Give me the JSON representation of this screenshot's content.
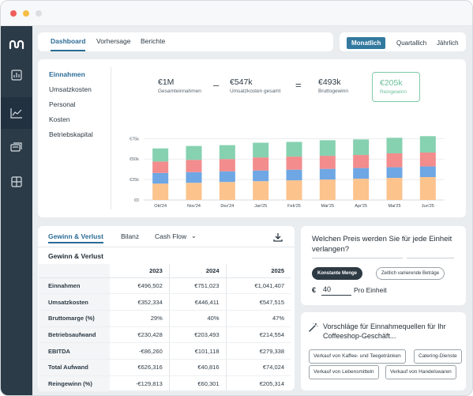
{
  "window": {
    "dots": [
      {
        "name": "close-dot",
        "color": "#ee5f5b"
      },
      {
        "name": "minimize-dot",
        "color": "#f6bd45"
      },
      {
        "name": "maximize-dot",
        "color": "#dcdfe2"
      }
    ]
  },
  "sidebar": {
    "items": [
      {
        "name": "logo-icon"
      },
      {
        "name": "sidebar-item-reports-icon"
      },
      {
        "name": "sidebar-item-analytics-icon",
        "active": true
      },
      {
        "name": "sidebar-item-cards-icon"
      },
      {
        "name": "sidebar-item-grid-icon"
      }
    ]
  },
  "nav": {
    "tabs": [
      {
        "label": "Dashboard",
        "active": true
      },
      {
        "label": "Vorhersage"
      },
      {
        "label": "Berichte"
      }
    ],
    "periods": [
      {
        "label": "Monatlich",
        "active": true
      },
      {
        "label": "Quartallich"
      },
      {
        "label": "Jährlich"
      }
    ]
  },
  "metrics": {
    "items": [
      "Einnahmen",
      "Umsatzkosten",
      "Personal",
      "Kosten",
      "Betriebskapital"
    ],
    "active_index": 0
  },
  "kpis": {
    "revenue": {
      "value": "€1M",
      "label": "Gesamteinnahmen"
    },
    "minus": "–",
    "cogs": {
      "value": "€547k",
      "label": "Umsatzkosten gesamt"
    },
    "equals": "=",
    "gross": {
      "value": "€493k",
      "label": "Bruttogewinn"
    },
    "net": {
      "value": "€205k",
      "label": "Reingewinn"
    }
  },
  "chart_data": {
    "type": "bar",
    "stacked": true,
    "categories": [
      "Okt'24",
      "Nov'24",
      "Dez'24",
      "Jan'25",
      "Feb'25",
      "Mär'25",
      "Apr'25",
      "Mai'25",
      "Jun'25"
    ],
    "y_ticks": [
      "€0",
      "€25k",
      "€50k",
      "€75k"
    ],
    "ylim": [
      0,
      85
    ],
    "series": [
      {
        "color": "#fcc38d",
        "values": [
          20,
          21,
          22,
          23,
          24,
          25,
          26,
          27,
          28
        ]
      },
      {
        "color": "#6ea7e4",
        "values": [
          13,
          13,
          13,
          13,
          13,
          13,
          13,
          13,
          13
        ]
      },
      {
        "color": "#f28c8d",
        "values": [
          14,
          15,
          15,
          16,
          16,
          16,
          16,
          17,
          17
        ]
      },
      {
        "color": "#86d1b0",
        "values": [
          16,
          17,
          17,
          18,
          18,
          19,
          19,
          19,
          20
        ]
      }
    ],
    "grid": true,
    "colors": {
      "grid": "#e3e6e9",
      "axis": "#c9ced2"
    }
  },
  "pl": {
    "tabs": [
      "Gewinn & Verlust",
      "Bilanz",
      "Cash Flow"
    ],
    "title": "Gewinn & Verlust",
    "columns": [
      "2023",
      "2024",
      "2025"
    ],
    "rows": [
      {
        "label": "Einnahmen",
        "values": [
          "€496,502",
          "€751,023",
          "€1,041,407"
        ]
      },
      {
        "label": "Umsatzkosten",
        "values": [
          "€352,334",
          "€446,411",
          "€547,515"
        ]
      },
      {
        "label": "Bruttomarge (%)",
        "values": [
          "29%",
          "40%",
          "47%"
        ]
      },
      {
        "label": "Betriebsaufwand",
        "values": [
          "€230,428",
          "€203,493",
          "€214,554"
        ]
      },
      {
        "label": "EBITDA",
        "values": [
          "-€86,260",
          "€101,118",
          "€279,338"
        ]
      },
      {
        "label": "Total Aufwand",
        "values": [
          "€626,316",
          "€40,816",
          "€74,024"
        ]
      },
      {
        "label": "Reingewinn (%)",
        "values": [
          "-€129,813",
          "€60,301",
          "€205,314"
        ]
      }
    ]
  },
  "pricing": {
    "question": "Welchen Preis werden Sie für jede Einheit verlangen?",
    "chip_constant": "Konstante Menge",
    "chip_variable": "Zeitlich variierende Beträge",
    "currency": "€",
    "price": "40",
    "unit": "Pro Einheit"
  },
  "suggestions": {
    "title": "Vorschläge für Einnahmequellen für Ihr Coffeeshop-Geschäft...",
    "tags": [
      "Verkauf von Kaffee- und Teegetränken",
      "Catering-Dienste",
      "Verkauf von Lebensmitteln",
      "Verkauf von Handelswaren"
    ]
  },
  "colors": {
    "accent": "#33799f",
    "sidebar": "#2b3b48",
    "net_border": "#7fcaa9",
    "net_text": "#6cc09b"
  }
}
